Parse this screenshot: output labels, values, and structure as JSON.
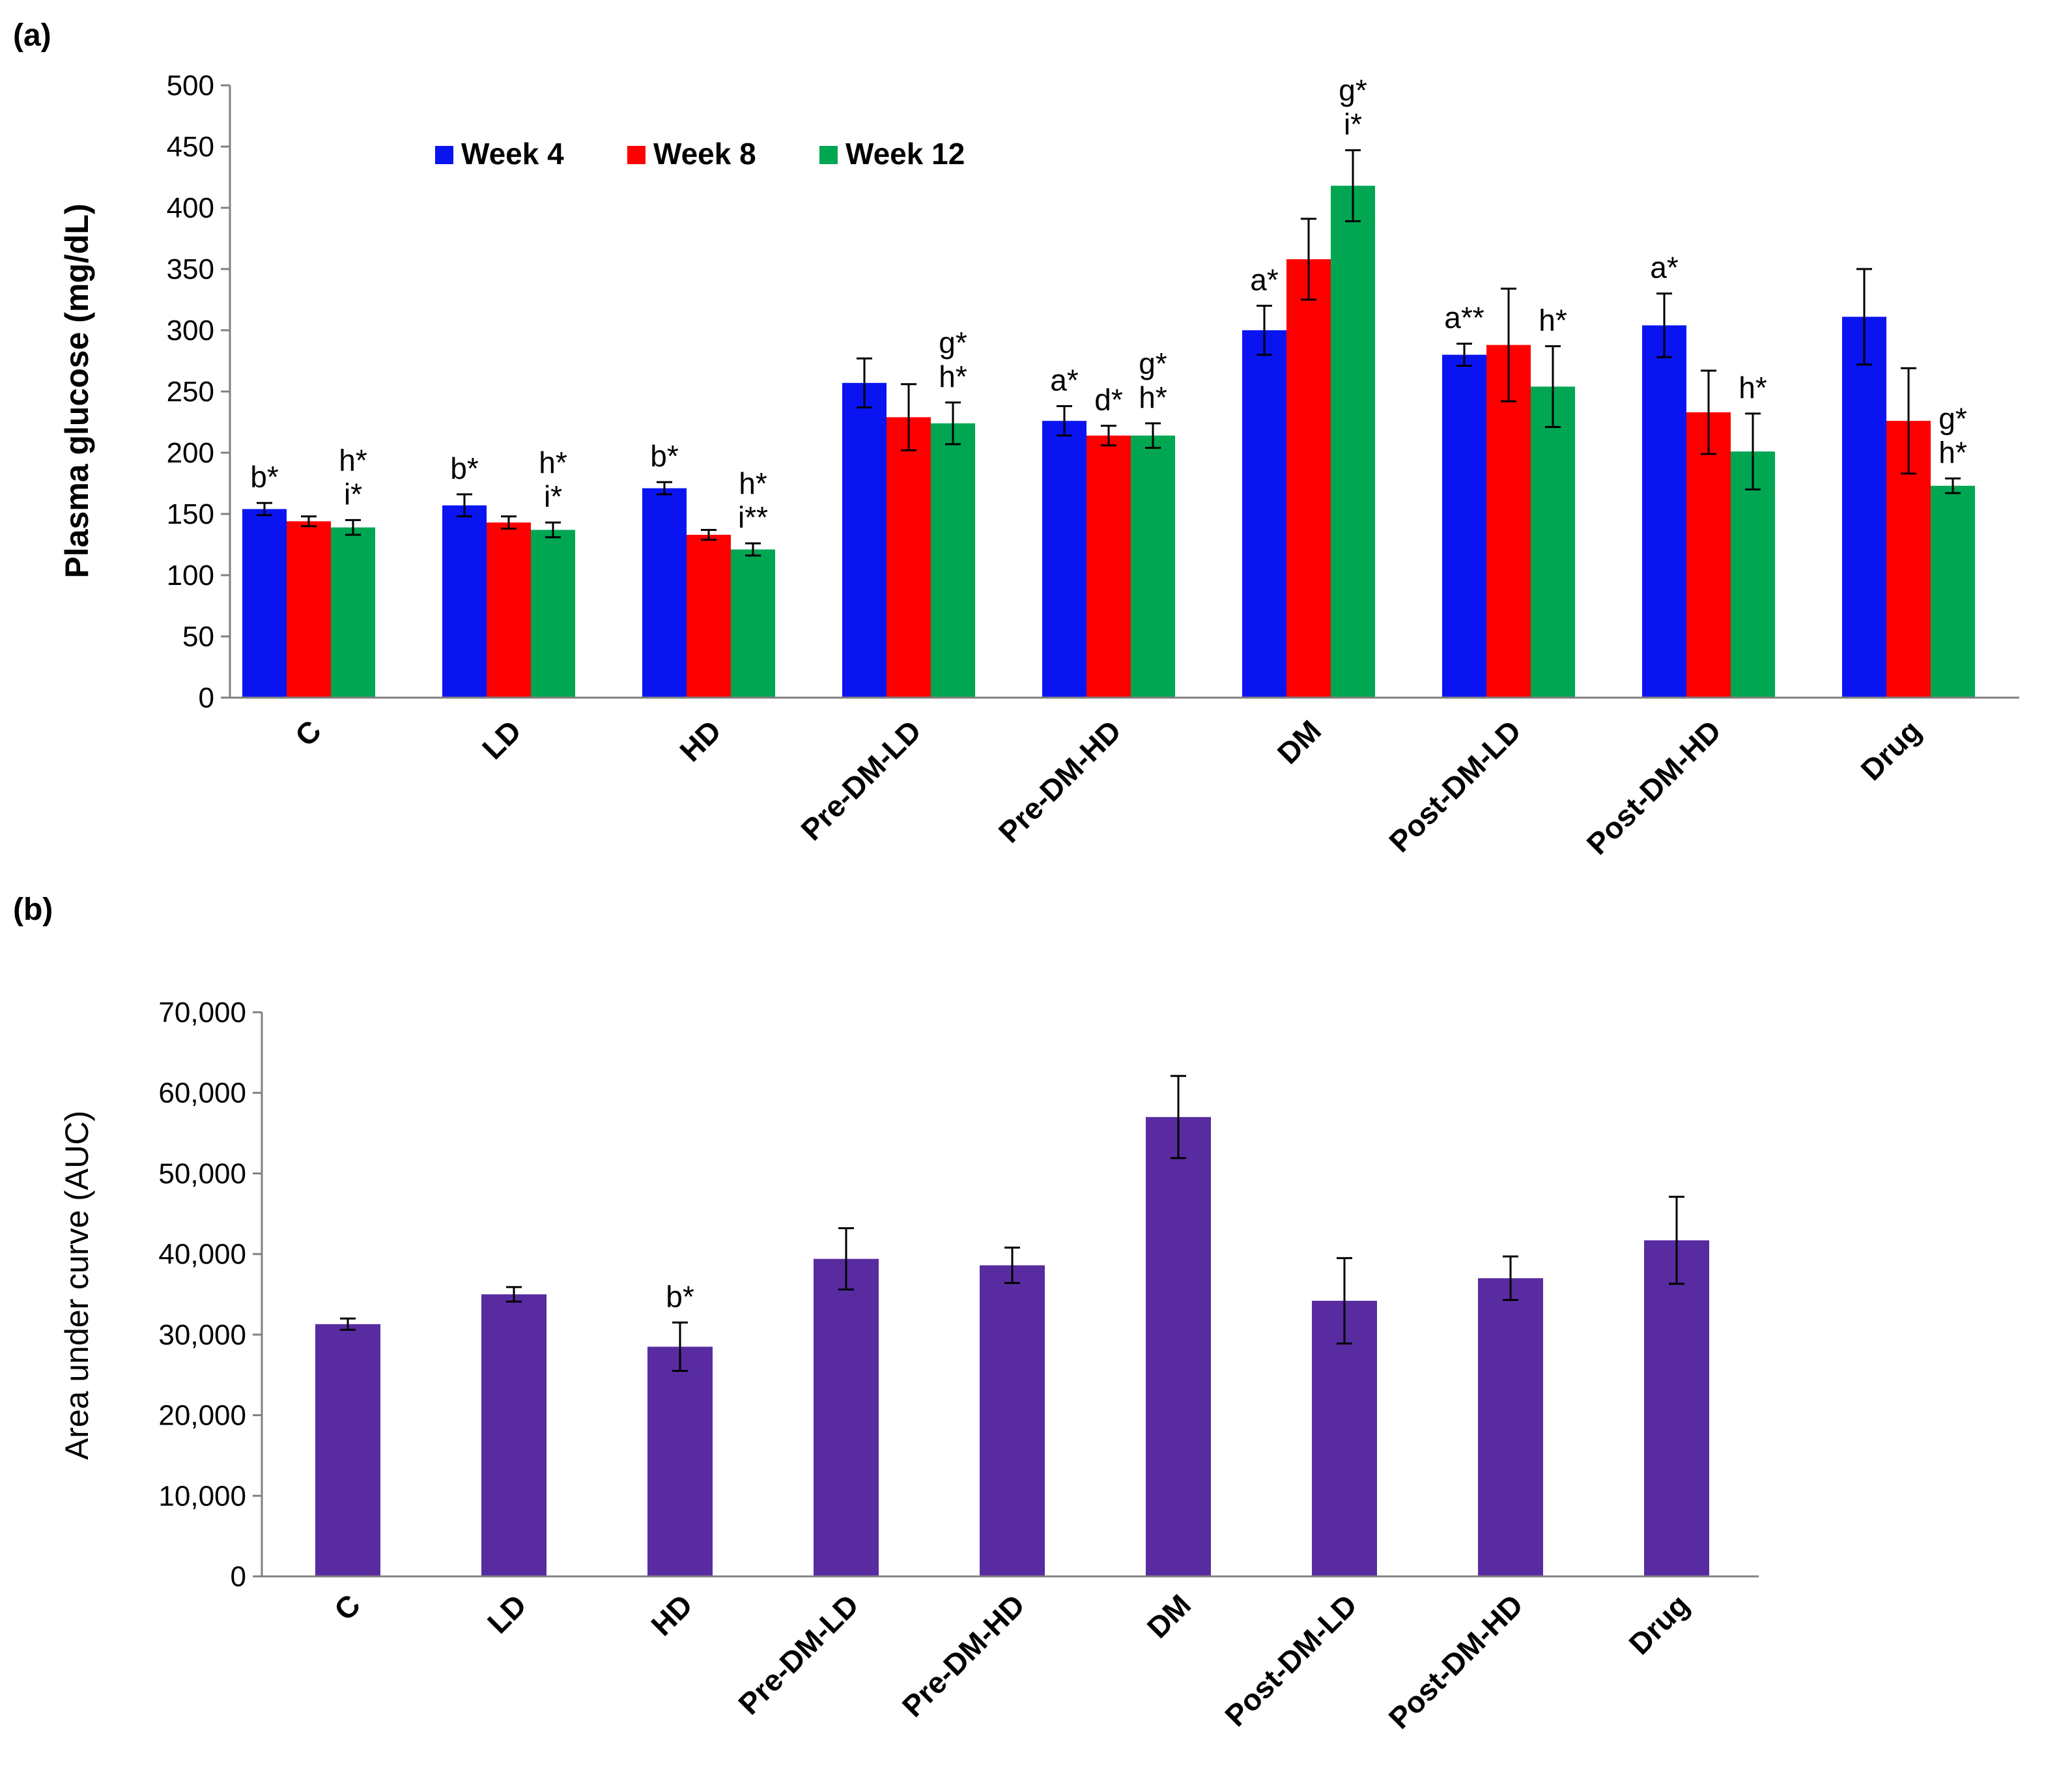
{
  "chart_data": [
    {
      "panel_label": "(a)",
      "type": "bar",
      "ylabel": "Plasma glucose (mg/dL)",
      "ylim": [
        0,
        500
      ],
      "ytick_step": 50,
      "yticks": [
        "0",
        "50",
        "100",
        "150",
        "200",
        "250",
        "300",
        "350",
        "400",
        "450",
        "500"
      ],
      "categories": [
        "C",
        "LD",
        "HD",
        "Pre-DM-LD",
        "Pre-DM-HD",
        "DM",
        "Post-DM-LD",
        "Post-DM-HD",
        "Drug"
      ],
      "legend_position": "top-left",
      "series": [
        {
          "name": "Week 4",
          "color": "#0a14f0",
          "values": [
            154,
            157,
            171,
            257,
            226,
            300,
            280,
            304,
            311
          ],
          "errors": [
            5,
            9,
            5,
            20,
            12,
            20,
            9,
            26,
            39
          ]
        },
        {
          "name": "Week 8",
          "color": "#ff0000",
          "values": [
            144,
            143,
            133,
            229,
            214,
            358,
            288,
            233,
            226
          ],
          "errors": [
            4,
            5,
            4,
            27,
            8,
            33,
            46,
            34,
            43
          ]
        },
        {
          "name": "Week 12",
          "color": "#00a651",
          "values": [
            139,
            137,
            121,
            224,
            214,
            418,
            254,
            201,
            173
          ],
          "errors": [
            6,
            6,
            5,
            17,
            10,
            29,
            33,
            31,
            6
          ]
        }
      ],
      "annotations": [
        {
          "category": 0,
          "series": 0,
          "lines": [
            "b*"
          ]
        },
        {
          "category": 0,
          "series": 2,
          "lines": [
            "h*",
            "i*"
          ]
        },
        {
          "category": 1,
          "series": 0,
          "lines": [
            "b*"
          ]
        },
        {
          "category": 1,
          "series": 2,
          "lines": [
            "h*",
            "i*"
          ]
        },
        {
          "category": 2,
          "series": 0,
          "lines": [
            "b*"
          ]
        },
        {
          "category": 2,
          "series": 2,
          "lines": [
            "h*",
            "i**"
          ]
        },
        {
          "category": 3,
          "series": 2,
          "lines": [
            "g*",
            "h*"
          ]
        },
        {
          "category": 4,
          "series": 0,
          "lines": [
            "a*"
          ]
        },
        {
          "category": 4,
          "series": 1,
          "lines": [
            "d*"
          ]
        },
        {
          "category": 4,
          "series": 2,
          "lines": [
            "g*",
            "h*"
          ]
        },
        {
          "category": 5,
          "series": 0,
          "lines": [
            "a*"
          ]
        },
        {
          "category": 5,
          "series": 2,
          "lines": [
            "g*",
            "i*"
          ]
        },
        {
          "category": 6,
          "series": 0,
          "lines": [
            "a**"
          ]
        },
        {
          "category": 6,
          "series": 2,
          "lines": [
            "h*"
          ]
        },
        {
          "category": 7,
          "series": 0,
          "lines": [
            "a*"
          ]
        },
        {
          "category": 7,
          "series": 2,
          "lines": [
            "h*"
          ]
        },
        {
          "category": 8,
          "series": 2,
          "lines": [
            "g*",
            "h*"
          ]
        }
      ],
      "grid": false
    },
    {
      "panel_label": "(b)",
      "type": "bar",
      "ylabel": "Area under curve (AUC)",
      "ylim": [
        0,
        70000
      ],
      "ytick_step": 10000,
      "yticks": [
        "0",
        "10,000",
        "20,000",
        "30,000",
        "40,000",
        "50,000",
        "60,000",
        "70,000"
      ],
      "categories": [
        "C",
        "LD",
        "HD",
        "Pre-DM-LD",
        "Pre-DM-HD",
        "DM",
        "Post-DM-LD",
        "Post-DM-HD",
        "Drug"
      ],
      "series": [
        {
          "color": "#582ca0",
          "values": [
            31300,
            35000,
            28500,
            39400,
            38600,
            57000,
            34200,
            37000,
            41700
          ],
          "errors": [
            700,
            900,
            3000,
            3800,
            2200,
            5100,
            5300,
            2700,
            5400
          ]
        }
      ],
      "annotations": [
        {
          "category": 2,
          "series": 0,
          "lines": [
            "b*"
          ]
        }
      ],
      "grid": false
    }
  ]
}
